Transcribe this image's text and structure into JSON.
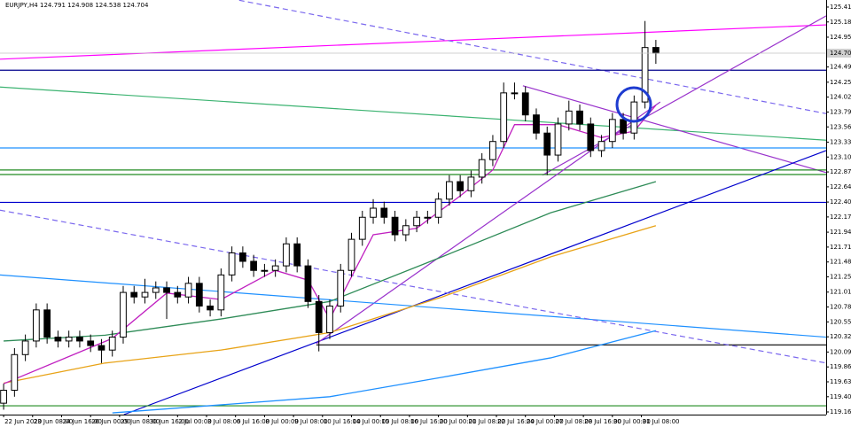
{
  "chart_data": {
    "type": "candlestick",
    "title": "EURJPY,H4  124.791 124.908 124.538 124.704",
    "up_color": "#ffffff",
    "down_color": "#000000",
    "outline_color": "#000000",
    "xlim": [
      -1,
      227
    ],
    "ylim": [
      119.124,
      125.524
    ],
    "yticks": [
      125.415,
      125.185,
      {
        "value": 124.95,
        "label": "124.950"
      },
      {
        "value": 124.49,
        "label": "124.490"
      },
      124.255,
      124.025,
      123.795,
      123.565,
      {
        "value": 123.33,
        "label": "123.330"
      },
      {
        "value": 123.1,
        "label": "123.100"
      },
      {
        "value": 122.87,
        "label": "122.870"
      },
      {
        "value": 122.64,
        "label": "122.640"
      },
      122.405,
      122.175,
      {
        "value": 121.94,
        "label": "121.940"
      },
      {
        "value": 121.71,
        "label": "121.710"
      },
      {
        "value": 121.48,
        "label": "121.480"
      },
      {
        "value": 121.25,
        "label": "121.250"
      },
      121.015,
      120.785,
      120.555,
      120.325,
      {
        "value": 120.09,
        "label": "120.090"
      },
      {
        "value": 119.86,
        "label": "119.860"
      },
      {
        "value": 119.63,
        "label": "119.630"
      },
      {
        "value": 119.4,
        "label": "119.400"
      },
      119.165
    ],
    "xticks": [
      {
        "value": 0,
        "label": "22 Jun 2020"
      },
      {
        "value": 8,
        "label": "23 Jun 08:00"
      },
      {
        "value": 16,
        "label": "24 Jun 16:00"
      },
      {
        "value": 24,
        "label": "26 Jun 00:00"
      },
      {
        "value": 32,
        "label": "29 Jun 08:00"
      },
      {
        "value": 40,
        "label": "30 Jun 16:00"
      },
      {
        "value": 48,
        "label": "2 Jul 00:00"
      },
      {
        "value": 56,
        "label": "3 Jul 08:00"
      },
      {
        "value": 64,
        "label": "6 Jul 16:00"
      },
      {
        "value": 72,
        "label": "8 Jul 00:00"
      },
      {
        "value": 80,
        "label": "9 Jul 08:00"
      },
      {
        "value": 88,
        "label": "10 Jul 16:00"
      },
      {
        "value": 96,
        "label": "14 Jul 00:00"
      },
      {
        "value": 104,
        "label": "15 Jul 08:00"
      },
      {
        "value": 112,
        "label": "16 Jul 16:00"
      },
      {
        "value": 120,
        "label": "20 Jul 00:00"
      },
      {
        "value": 128,
        "label": "21 Jul 08:00"
      },
      {
        "value": 136,
        "label": "22 Jul 16:00"
      },
      {
        "value": 144,
        "label": "24 Jul 00:00"
      },
      {
        "value": 152,
        "label": "27 Jul 08:00"
      },
      {
        "value": 160,
        "label": "28 Jul 16:00"
      },
      {
        "value": 168,
        "label": "30 Jul 00:00"
      },
      {
        "value": 176,
        "label": "31 Jul 08:00"
      }
    ],
    "x": [
      0,
      3,
      6,
      9,
      12,
      15,
      18,
      21,
      24,
      27,
      30,
      33,
      36,
      39,
      42,
      45,
      48,
      51,
      54,
      57,
      60,
      63,
      66,
      69,
      72,
      75,
      78,
      81,
      84,
      87,
      90,
      93,
      96,
      99,
      102,
      105,
      108,
      111,
      114,
      117,
      120,
      123,
      126,
      129,
      132,
      135,
      138,
      141,
      144,
      147,
      150,
      153,
      156,
      159,
      162,
      165,
      168,
      171,
      174,
      177,
      180
    ],
    "open": [
      119.3,
      119.5,
      120.05,
      120.26,
      120.74,
      120.32,
      120.26,
      120.32,
      120.26,
      120.19,
      120.12,
      120.32,
      121.01,
      120.94,
      121.01,
      121.08,
      121.01,
      120.94,
      121.15,
      120.8,
      120.74,
      121.28,
      121.62,
      121.49,
      121.35,
      121.35,
      121.42,
      121.76,
      121.42,
      120.87,
      120.39,
      120.8,
      121.35,
      121.83,
      122.17,
      122.31,
      122.17,
      121.9,
      122.04,
      122.17,
      122.17,
      122.45,
      122.72,
      122.58,
      122.79,
      123.06,
      123.34,
      124.09,
      124.09,
      123.75,
      123.47,
      123.13,
      123.61,
      123.81,
      123.61,
      123.2,
      123.34,
      123.68,
      123.47,
      123.95,
      124.791
    ],
    "high": [
      119.6,
      120.15,
      120.36,
      120.84,
      120.84,
      120.42,
      120.42,
      120.42,
      120.36,
      120.29,
      120.42,
      121.11,
      121.11,
      121.22,
      121.18,
      121.18,
      121.11,
      121.25,
      121.25,
      120.9,
      121.38,
      121.72,
      121.72,
      121.59,
      121.45,
      121.52,
      121.86,
      121.86,
      121.52,
      120.97,
      120.9,
      121.45,
      121.93,
      122.27,
      122.45,
      122.41,
      122.27,
      122.14,
      122.27,
      122.27,
      122.55,
      122.82,
      122.82,
      122.89,
      123.16,
      123.44,
      124.25,
      124.25,
      124.19,
      123.85,
      123.57,
      123.71,
      123.97,
      123.91,
      123.71,
      123.44,
      123.78,
      123.78,
      124.05,
      125.2,
      124.908
    ],
    "low": [
      119.2,
      119.4,
      119.95,
      120.16,
      120.22,
      120.16,
      120.16,
      120.16,
      120.09,
      119.92,
      120.02,
      120.22,
      120.84,
      120.84,
      120.91,
      120.6,
      120.84,
      120.84,
      120.7,
      120.64,
      120.64,
      121.18,
      121.39,
      121.25,
      121.25,
      121.25,
      121.32,
      121.32,
      120.77,
      120.1,
      120.29,
      120.7,
      121.25,
      121.73,
      122.07,
      122.07,
      121.8,
      121.8,
      121.94,
      122.07,
      122.07,
      122.35,
      122.48,
      122.48,
      122.69,
      122.96,
      123.24,
      123.99,
      123.65,
      123.37,
      122.82,
      123.03,
      123.51,
      123.51,
      123.1,
      123.1,
      123.24,
      123.37,
      123.37,
      123.85,
      124.538
    ],
    "close": [
      119.5,
      120.05,
      120.26,
      120.74,
      120.32,
      120.26,
      120.32,
      120.26,
      120.19,
      120.12,
      120.32,
      121.01,
      120.94,
      121.01,
      121.08,
      121.01,
      120.94,
      121.15,
      120.8,
      120.74,
      121.28,
      121.62,
      121.49,
      121.35,
      121.35,
      121.42,
      121.76,
      121.42,
      120.87,
      120.39,
      120.8,
      121.35,
      121.83,
      122.17,
      122.31,
      122.17,
      121.9,
      122.04,
      122.17,
      122.17,
      122.45,
      122.72,
      122.58,
      122.79,
      123.06,
      123.34,
      124.09,
      124.09,
      123.75,
      123.47,
      123.13,
      123.61,
      123.81,
      123.61,
      123.2,
      123.34,
      123.68,
      123.47,
      123.95,
      124.79,
      124.704
    ],
    "series": [
      {
        "color": "#e8a317",
        "x": [
          0,
          28,
          60,
          90,
          121,
          151,
          180
        ],
        "values": [
          119.61,
          119.92,
          120.12,
          120.39,
          120.94,
          121.56,
          122.04
        ]
      },
      {
        "color": "#2e8b57",
        "x": [
          0,
          28,
          60,
          90,
          121,
          151,
          180
        ],
        "values": [
          120.26,
          120.35,
          120.6,
          120.87,
          121.56,
          122.24,
          122.72
        ]
      },
      {
        "color": "#1e90ff",
        "x": [
          30,
          90,
          121,
          151,
          180
        ],
        "values": [
          119.15,
          119.4,
          119.7,
          120.0,
          120.42
        ]
      },
      {
        "color": "#c020c0",
        "x": [
          0,
          30,
          45,
          60,
          75,
          84,
          90,
          102,
          114,
          126,
          135,
          141,
          153,
          165,
          174,
          180
        ],
        "values": [
          119.6,
          120.3,
          121.0,
          120.9,
          121.35,
          121.2,
          120.6,
          121.9,
          122.0,
          122.5,
          122.9,
          123.6,
          123.6,
          123.4,
          123.5,
          123.9
        ]
      }
    ],
    "lines": [
      {
        "color": "#ff00ff",
        "x": [
          -1,
          227
        ],
        "y": [
          124.61,
          125.14
        ]
      },
      {
        "color": "#7b68ee",
        "dash": true,
        "x": [
          65,
          227
        ],
        "y": [
          125.52,
          123.77
        ]
      },
      {
        "color": "#00008b",
        "x": [
          -1,
          227
        ],
        "y": [
          124.44,
          124.44
        ]
      },
      {
        "color": "#3cb371",
        "x": [
          -1,
          227
        ],
        "y": [
          124.18,
          123.36
        ]
      },
      {
        "color": "#9932cc",
        "x": [
          143.3,
          227
        ],
        "y": [
          124.2,
          122.86
        ]
      },
      {
        "color": "#9932cc",
        "x": [
          148.7,
          227
        ],
        "y": [
          122.82,
          125.28
        ]
      },
      {
        "color": "#1e90ff",
        "x": [
          -1,
          227
        ],
        "y": [
          123.24,
          123.24
        ]
      },
      {
        "color": "#228b22",
        "x": [
          -1,
          227
        ],
        "y": [
          122.9,
          122.9
        ]
      },
      {
        "color": "#228b22",
        "x": [
          -1,
          227
        ],
        "y": [
          122.83,
          122.83
        ]
      },
      {
        "color": "#0000cd",
        "x": [
          -1,
          227
        ],
        "y": [
          122.4,
          122.4
        ]
      },
      {
        "color": "#0000cd",
        "x": [
          33.2,
          227
        ],
        "y": [
          119.124,
          123.2
        ]
      },
      {
        "color": "#9932cc",
        "x": [
          86.3,
          181.2
        ],
        "y": [
          120.22,
          123.95
        ]
      },
      {
        "color": "#000000",
        "x": [
          86.3,
          227
        ],
        "y": [
          120.2,
          120.2
        ]
      },
      {
        "color": "#1e90ff",
        "x": [
          -1,
          227
        ],
        "y": [
          121.28,
          120.32
        ]
      },
      {
        "color": "#7b68ee",
        "dash": true,
        "x": [
          -1,
          227
        ],
        "y": [
          122.28,
          119.92
        ]
      },
      {
        "color": "#228b22",
        "x": [
          -1,
          227
        ],
        "y": [
          119.26,
          119.26
        ]
      }
    ]
  }
}
